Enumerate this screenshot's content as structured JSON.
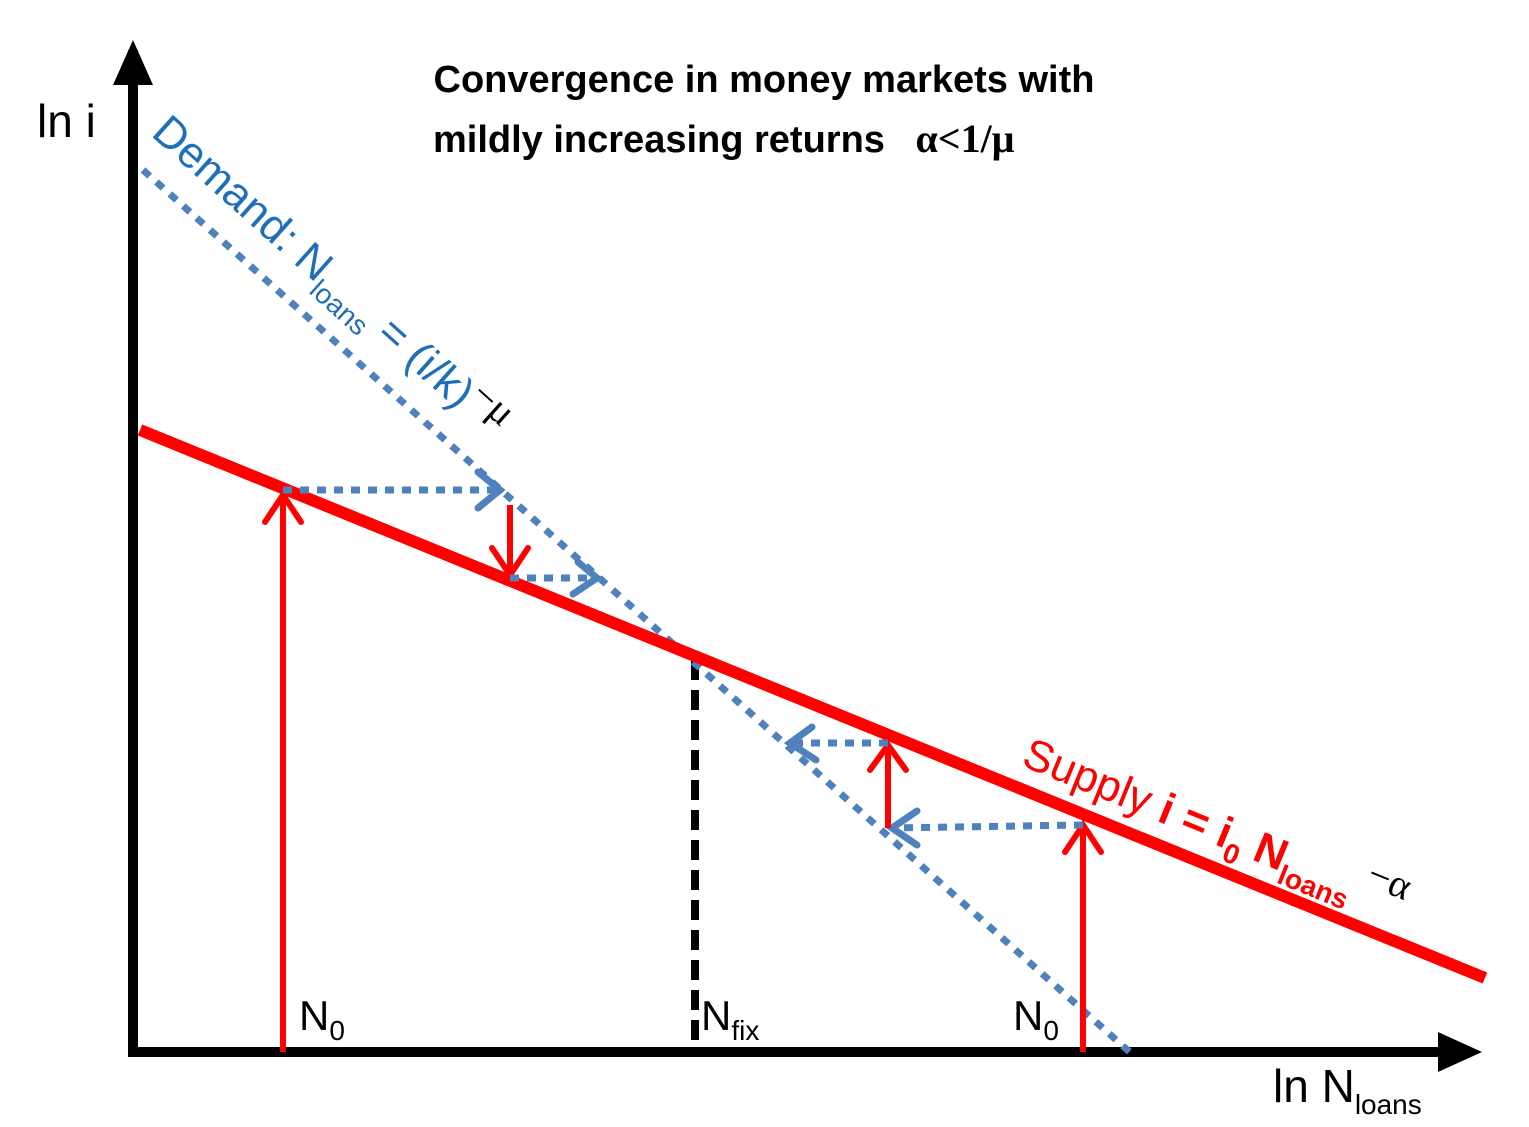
{
  "title": {
    "line1": "Convergence in money markets with",
    "line2": "mildly increasing returns",
    "condition": "α<1/μ"
  },
  "axes": {
    "y_label": "ln i",
    "x_label_main": "ln N",
    "x_label_sub": "loans"
  },
  "markers": {
    "n0_left_main": "N",
    "n0_left_sub": "0",
    "nfix_main": "N",
    "nfix_sub": "fix",
    "n0_right_main": "N",
    "n0_right_sub": "0"
  },
  "demand_label": {
    "prefix": "Demand: N",
    "sub": "loans",
    "middle": " = (i/k)",
    "sup": "−μ"
  },
  "supply_label": {
    "prefix": "Supply ",
    "i": "i",
    "eq": "  = ",
    "i0": "i",
    "i0_sub": "0",
    "n": " N",
    "n_sub": "loans",
    "sup": " −α"
  },
  "colors": {
    "supply": "#ff0000",
    "demand": "#4f81bd",
    "demand_text": "#1f6fb8",
    "axis": "#000000",
    "fix_line": "#000000"
  }
}
